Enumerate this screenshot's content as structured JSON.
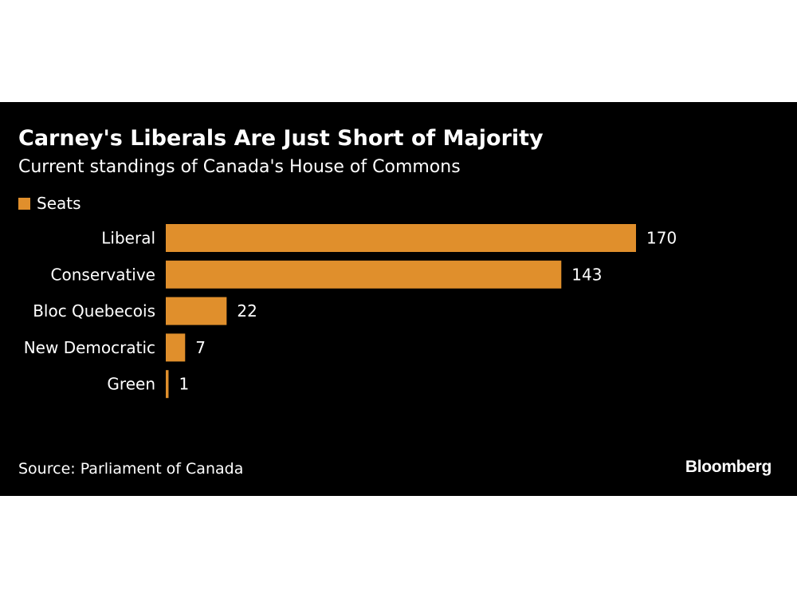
{
  "colors": {
    "bar": "#e08f2c",
    "background": "#000000",
    "text": "#ffffff"
  },
  "chart_data": {
    "type": "bar",
    "orientation": "horizontal",
    "title": "Carney's Liberals Are Just Short of Majority",
    "subtitle": "Current standings of Canada's House of Commons",
    "categories": [
      "Liberal",
      "Conservative",
      "Bloc Quebecois",
      "New Democratic",
      "Green"
    ],
    "series": [
      {
        "name": "Seats",
        "values": [
          170,
          143,
          22,
          7,
          1
        ]
      }
    ],
    "xlim": [
      0,
      170
    ],
    "grid": false,
    "legend_position": "top-left"
  },
  "footer": {
    "source": "Source: Parliament of Canada",
    "brand": "Bloomberg"
  }
}
